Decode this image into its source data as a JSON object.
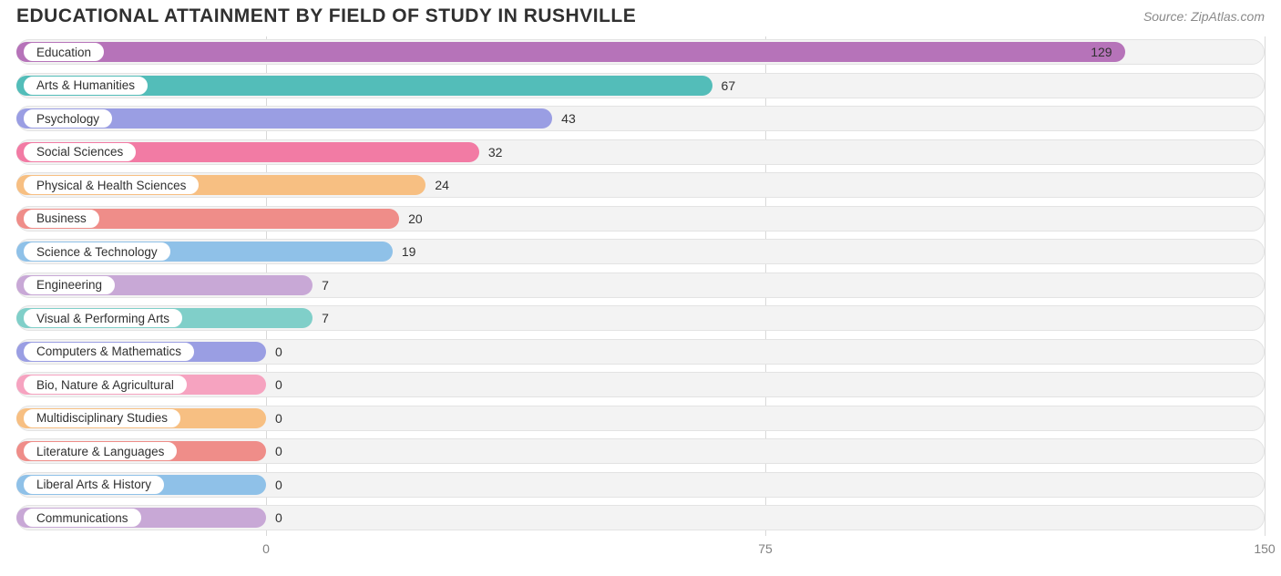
{
  "title": "EDUCATIONAL ATTAINMENT BY FIELD OF STUDY IN RUSHVILLE",
  "source": "Source: ZipAtlas.com",
  "chart": {
    "type": "bar-horizontal",
    "background_color": "#ffffff",
    "track_color": "#f3f3f3",
    "track_border": "#e3e3e3",
    "grid_color": "#d9d9d9",
    "label_bg": "#ffffff",
    "text_color": "#303030",
    "axis_text_color": "#808080",
    "title_fontsize": 21,
    "label_fontsize": 13.5,
    "value_fontsize": 14,
    "axis_fontsize": 14,
    "xlim": [
      0,
      150
    ],
    "xticks": [
      0,
      75,
      150
    ],
    "zero_offset_pct": 20.0,
    "bar_min_pct": 20.0,
    "bars": [
      {
        "label": "Education",
        "value": 129,
        "color": "#b673b9",
        "value_inside": true
      },
      {
        "label": "Arts & Humanities",
        "value": 67,
        "color": "#53bdb9",
        "value_inside": false
      },
      {
        "label": "Psychology",
        "value": 43,
        "color": "#9a9ee3",
        "value_inside": false
      },
      {
        "label": "Social Sciences",
        "value": 32,
        "color": "#f27ba4",
        "value_inside": false
      },
      {
        "label": "Physical & Health Sciences",
        "value": 24,
        "color": "#f7bf82",
        "value_inside": false
      },
      {
        "label": "Business",
        "value": 20,
        "color": "#ef8d89",
        "value_inside": false
      },
      {
        "label": "Science & Technology",
        "value": 19,
        "color": "#8fc1e8",
        "value_inside": false
      },
      {
        "label": "Engineering",
        "value": 7,
        "color": "#c8a8d6",
        "value_inside": false
      },
      {
        "label": "Visual & Performing Arts",
        "value": 7,
        "color": "#80cfc9",
        "value_inside": false
      },
      {
        "label": "Computers & Mathematics",
        "value": 0,
        "color": "#9a9ee3",
        "value_inside": false
      },
      {
        "label": "Bio, Nature & Agricultural",
        "value": 0,
        "color": "#f6a3c0",
        "value_inside": false
      },
      {
        "label": "Multidisciplinary Studies",
        "value": 0,
        "color": "#f7bf82",
        "value_inside": false
      },
      {
        "label": "Literature & Languages",
        "value": 0,
        "color": "#ef8d89",
        "value_inside": false
      },
      {
        "label": "Liberal Arts & History",
        "value": 0,
        "color": "#8fc1e8",
        "value_inside": false
      },
      {
        "label": "Communications",
        "value": 0,
        "color": "#c8a8d6",
        "value_inside": false
      }
    ]
  }
}
